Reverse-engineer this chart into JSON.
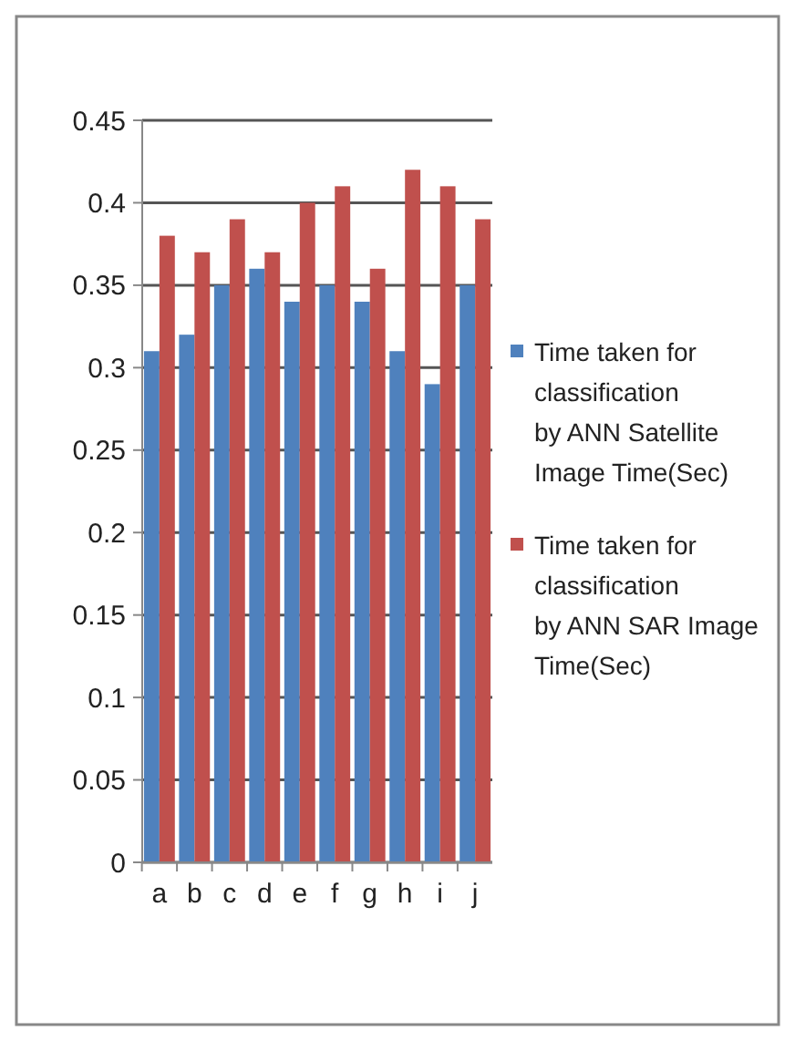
{
  "chart_data": {
    "type": "bar",
    "categories": [
      "a",
      "b",
      "c",
      "d",
      "e",
      "f",
      "g",
      "h",
      "i",
      "j"
    ],
    "series": [
      {
        "name": "Time taken for classification by ANN Satellite Image Time(Sec)",
        "color": "#4f81bd",
        "values": [
          0.31,
          0.32,
          0.35,
          0.36,
          0.34,
          0.35,
          0.34,
          0.31,
          0.29,
          0.35
        ]
      },
      {
        "name": "Time taken for classification by ANN SAR Image Time(Sec)",
        "color": "#c0504d",
        "values": [
          0.38,
          0.37,
          0.39,
          0.37,
          0.4,
          0.41,
          0.36,
          0.42,
          0.41,
          0.39
        ]
      }
    ],
    "ylim": [
      0,
      0.45
    ],
    "yticks": [
      0,
      0.05,
      0.1,
      0.15,
      0.2,
      0.25,
      0.3,
      0.35,
      0.4,
      0.45
    ],
    "grid": "y",
    "legend": "right"
  }
}
